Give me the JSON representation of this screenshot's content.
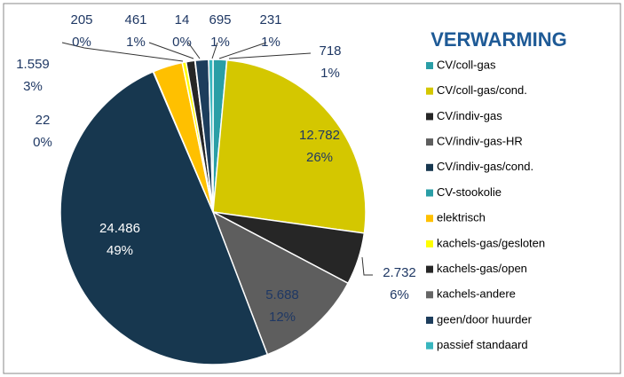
{
  "chart_data": {
    "type": "pie",
    "title": "VERWARMING",
    "categories": [
      "CV/coll-gas",
      "CV/coll-gas/cond.",
      "CV/indiv-gas",
      "CV/indiv-gas-HR",
      "CV/indiv-gas/cond.",
      "CV-stookolie",
      "elektrisch",
      "kachels-gas/gesloten",
      "kachels-gas/open",
      "kachels-andere",
      "geen/door huurder",
      "passief standaard"
    ],
    "values": [
      718,
      12782,
      2732,
      5688,
      24486,
      22,
      1559,
      205,
      461,
      14,
      695,
      231
    ],
    "value_labels": [
      "718",
      "12.782",
      "2.732",
      "5.688",
      "24.486",
      "22",
      "1.559",
      "205",
      "461",
      "14",
      "695",
      "231"
    ],
    "percent_labels": [
      "1%",
      "26%",
      "6%",
      "12%",
      "49%",
      "0%",
      "3%",
      "0%",
      "1%",
      "0%",
      "1%",
      "1%"
    ],
    "colors": [
      "#2a9ea6",
      "#d4c700",
      "#262626",
      "#5e5e5e",
      "#17374f",
      "#2a9ea6",
      "#ffc000",
      "#ffff00",
      "#262626",
      "#666666",
      "#1d3d5c",
      "#38b6be"
    ],
    "legend": "right"
  }
}
